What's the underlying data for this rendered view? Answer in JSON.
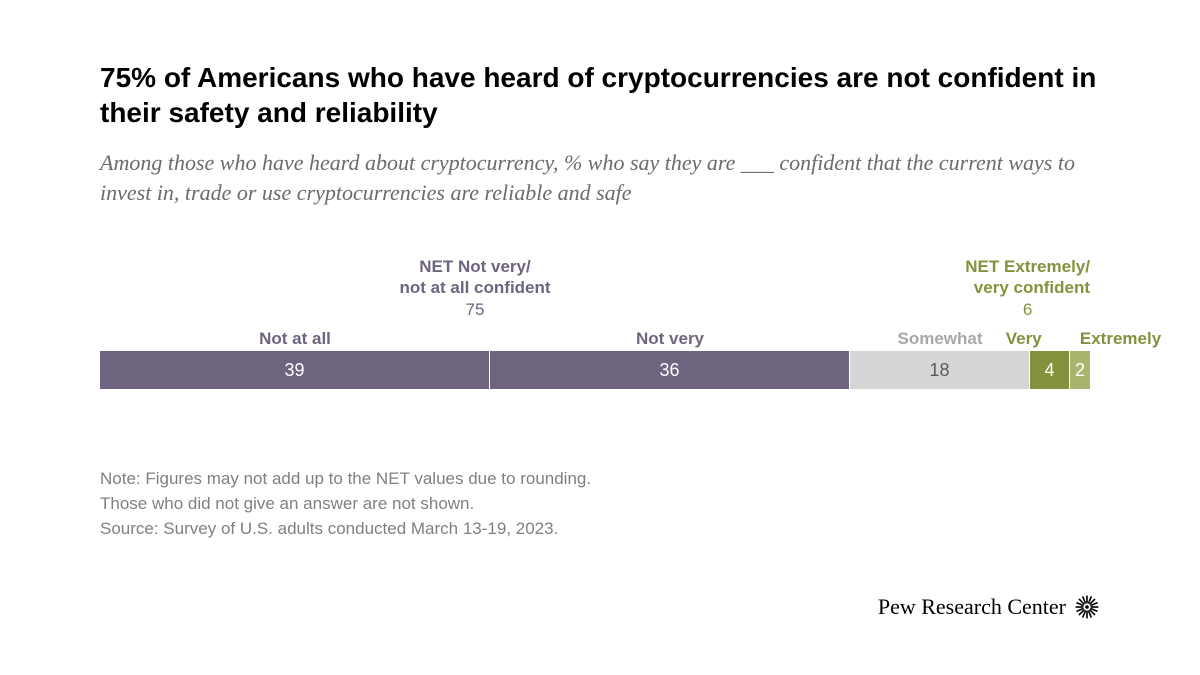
{
  "title": "75% of Americans who have heard of cryptocurrencies are not confident in their safety and reliability",
  "subtitle": "Among those who have heard about cryptocurrency, % who say they are ___ confident that the current ways to invest in, trade or use cryptocurrencies are reliable and safe",
  "chart": {
    "type": "stacked-bar",
    "total_width_pct": 99,
    "background_color": "#ffffff",
    "segments": [
      {
        "key": "not_at_all",
        "label": "Not at all",
        "value": 39,
        "color": "#6f6480",
        "text_color": "#ffffff",
        "cat_color": "#6f6480"
      },
      {
        "key": "not_very",
        "label": "Not very",
        "value": 36,
        "color": "#6f6480",
        "text_color": "#ffffff",
        "cat_color": "#6f6480"
      },
      {
        "key": "somewhat",
        "label": "Somewhat",
        "value": 18,
        "color": "#d6d6d6",
        "text_color": "#5a5a5a",
        "cat_color": "#a8a8a8"
      },
      {
        "key": "very",
        "label": "Very",
        "value": 4,
        "color": "#83923d",
        "text_color": "#ffffff",
        "cat_color": "#83923d"
      },
      {
        "key": "extremely",
        "label": "Extremely",
        "value": 2,
        "color": "#a9b56e",
        "text_color": "#ffffff",
        "cat_color": "#83923d"
      }
    ],
    "nets": {
      "left": {
        "title_line1": "NET Not very/",
        "title_line2": "not at all confident",
        "value": 75,
        "color": "#6f6480",
        "span_keys": [
          "not_at_all",
          "not_very"
        ]
      },
      "right": {
        "title_line1": "NET Extremely/",
        "title_line2": "very confident",
        "value": 6,
        "color": "#83923d",
        "span_keys": [
          "very",
          "extremely"
        ]
      }
    }
  },
  "notes": [
    "Note: Figures may not add up to the NET values due to rounding.",
    "Those who did not give an answer are not shown.",
    "Source: Survey of U.S. adults conducted March 13-19, 2023."
  ],
  "attribution": "Pew Research Center"
}
